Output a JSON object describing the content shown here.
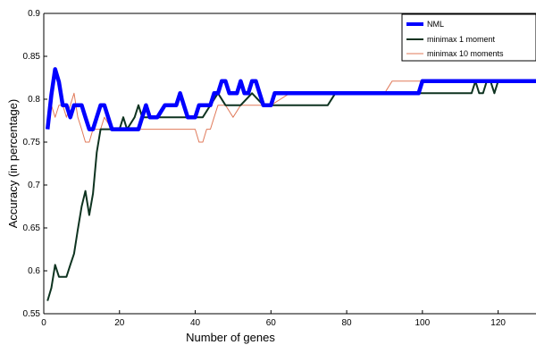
{
  "chart_data": {
    "type": "line",
    "title": "",
    "xlabel": "Number of genes",
    "ylabel": "Accuracy (in percentage)",
    "xlim": [
      0,
      130
    ],
    "ylim": [
      0.55,
      0.9
    ],
    "xticks": [
      "0",
      "20",
      "40",
      "60",
      "80",
      "100",
      "120"
    ],
    "yticks": [
      "0.55",
      "0.6",
      "0.65",
      "0.7",
      "0.75",
      "0.8",
      "0.85",
      "0.9"
    ],
    "grid": false,
    "legend_position": "top-right",
    "series": [
      {
        "name": "NML",
        "color": "#0000ff",
        "x": [
          1,
          2,
          3,
          4,
          5,
          6,
          7,
          8,
          9,
          10,
          11,
          12,
          13,
          14,
          15,
          16,
          18,
          20,
          22,
          24,
          25,
          26,
          27,
          28,
          29,
          30,
          32,
          33,
          34,
          35,
          36,
          37,
          38,
          39,
          40,
          41,
          42,
          43,
          44,
          45,
          46,
          47,
          48,
          49,
          50,
          51,
          52,
          53,
          54,
          55,
          56,
          57,
          58,
          59,
          60,
          61,
          65,
          70,
          75,
          80,
          85,
          90,
          95,
          98,
          99,
          100,
          101,
          102,
          105,
          110,
          115,
          120,
          125,
          130
        ],
        "y": [
          0.765,
          0.805,
          0.835,
          0.82,
          0.793,
          0.793,
          0.779,
          0.793,
          0.793,
          0.793,
          0.779,
          0.765,
          0.765,
          0.779,
          0.793,
          0.793,
          0.765,
          0.765,
          0.765,
          0.765,
          0.765,
          0.779,
          0.793,
          0.779,
          0.779,
          0.779,
          0.793,
          0.793,
          0.793,
          0.793,
          0.807,
          0.793,
          0.779,
          0.779,
          0.779,
          0.793,
          0.793,
          0.793,
          0.793,
          0.807,
          0.807,
          0.821,
          0.821,
          0.807,
          0.807,
          0.807,
          0.821,
          0.807,
          0.807,
          0.821,
          0.821,
          0.807,
          0.793,
          0.793,
          0.793,
          0.807,
          0.807,
          0.807,
          0.807,
          0.807,
          0.807,
          0.807,
          0.807,
          0.807,
          0.807,
          0.821,
          0.821,
          0.821,
          0.821,
          0.821,
          0.821,
          0.821,
          0.821,
          0.821
        ]
      },
      {
        "name": "minimax 1 moment",
        "color": "#0e3320",
        "x": [
          1,
          2,
          3,
          4,
          5,
          6,
          7,
          8,
          9,
          10,
          11,
          12,
          13,
          14,
          15,
          16,
          18,
          20,
          21,
          22,
          24,
          25,
          26,
          28,
          30,
          32,
          35,
          40,
          42,
          44,
          46,
          48,
          50,
          52,
          55,
          58,
          60,
          65,
          70,
          75,
          77,
          80,
          90,
          95,
          100,
          105,
          110,
          113,
          114,
          115,
          116,
          117,
          118,
          119,
          120,
          125,
          130
        ],
        "y": [
          0.565,
          0.58,
          0.607,
          0.593,
          0.593,
          0.593,
          0.607,
          0.62,
          0.648,
          0.675,
          0.693,
          0.665,
          0.69,
          0.738,
          0.765,
          0.765,
          0.765,
          0.765,
          0.779,
          0.765,
          0.779,
          0.793,
          0.779,
          0.779,
          0.779,
          0.779,
          0.779,
          0.779,
          0.779,
          0.793,
          0.807,
          0.793,
          0.793,
          0.793,
          0.807,
          0.793,
          0.793,
          0.793,
          0.793,
          0.793,
          0.807,
          0.807,
          0.807,
          0.807,
          0.807,
          0.807,
          0.807,
          0.807,
          0.821,
          0.807,
          0.807,
          0.821,
          0.821,
          0.807,
          0.821,
          0.821,
          0.821
        ]
      },
      {
        "name": "minimax 10 moments",
        "color": "#e07a5a",
        "x": [
          1,
          2,
          3,
          4,
          5,
          6,
          7,
          8,
          9,
          10,
          11,
          12,
          13,
          14,
          15,
          16,
          18,
          20,
          22,
          24,
          26,
          28,
          30,
          35,
          38,
          40,
          41,
          42,
          43,
          44,
          45,
          46,
          48,
          50,
          52,
          55,
          58,
          60,
          65,
          70,
          80,
          90,
          92,
          95,
          100,
          105,
          110,
          115,
          120,
          125,
          130
        ],
        "y": [
          0.779,
          0.793,
          0.779,
          0.793,
          0.793,
          0.779,
          0.793,
          0.807,
          0.779,
          0.765,
          0.75,
          0.75,
          0.765,
          0.765,
          0.765,
          0.779,
          0.765,
          0.765,
          0.765,
          0.765,
          0.765,
          0.765,
          0.765,
          0.765,
          0.765,
          0.765,
          0.75,
          0.75,
          0.765,
          0.765,
          0.779,
          0.793,
          0.793,
          0.779,
          0.793,
          0.793,
          0.793,
          0.793,
          0.807,
          0.807,
          0.807,
          0.807,
          0.821,
          0.821,
          0.821,
          0.821,
          0.821,
          0.821,
          0.821,
          0.821,
          0.821
        ]
      }
    ]
  }
}
